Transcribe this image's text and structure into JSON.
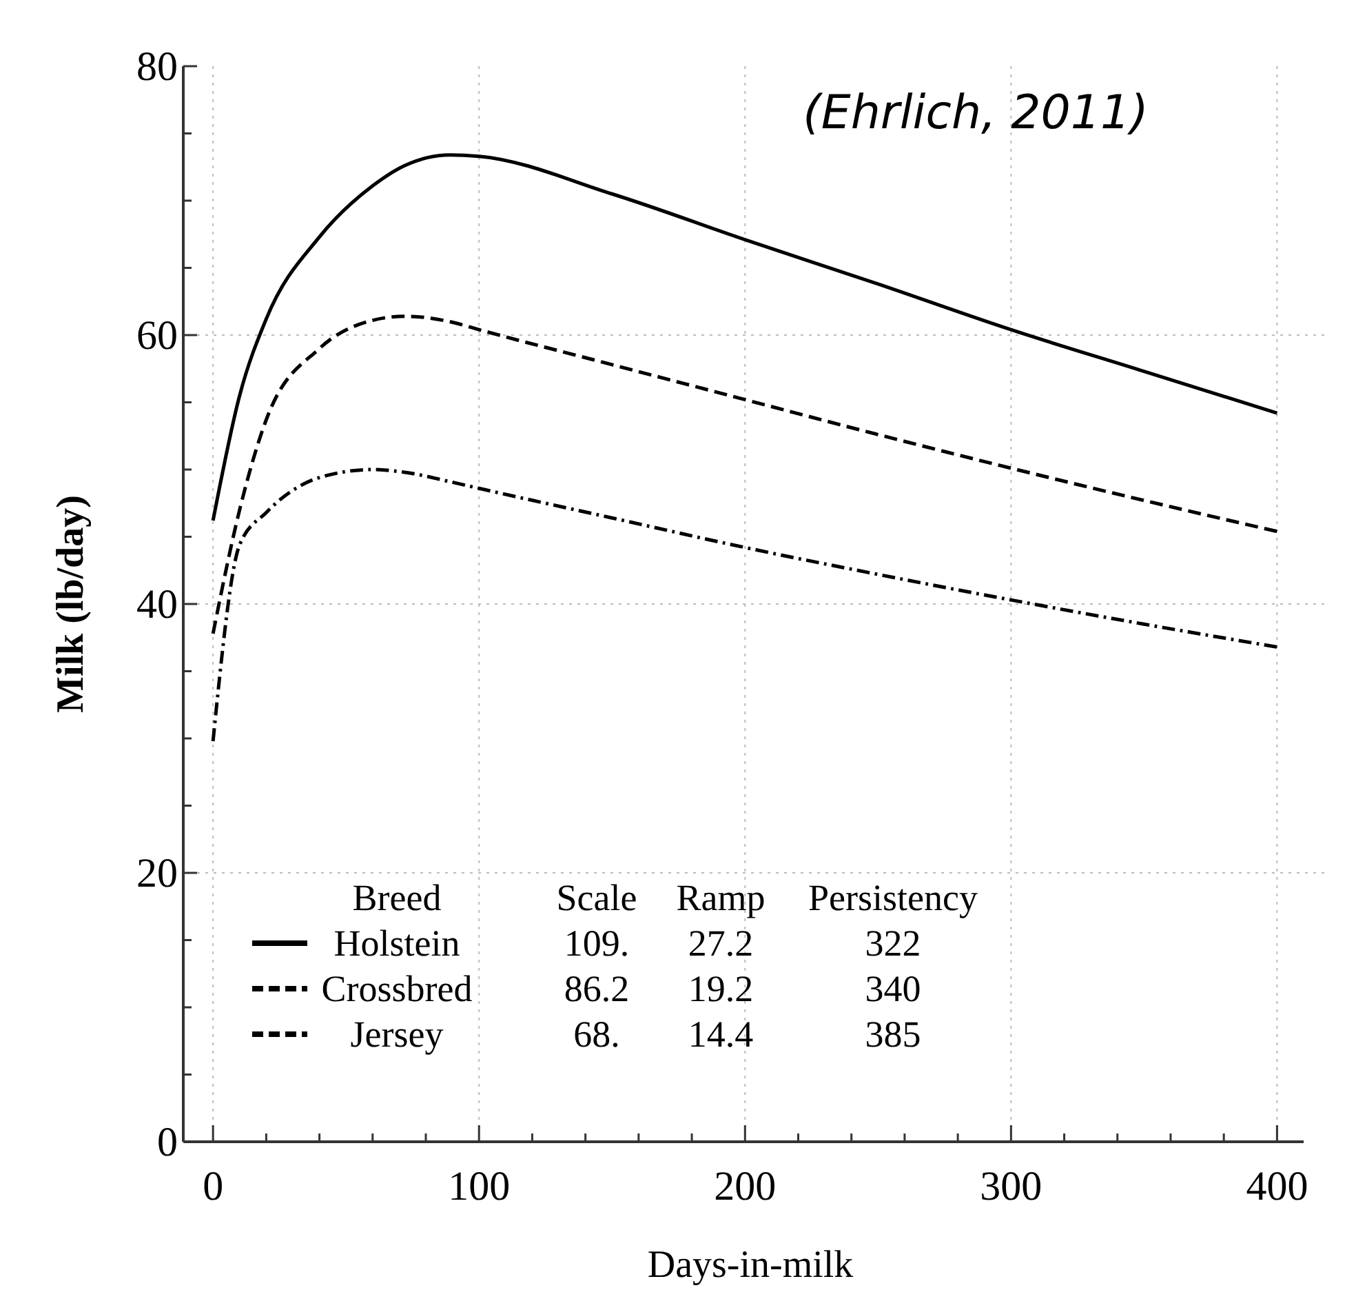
{
  "chart_data": {
    "type": "line",
    "xlabel": "Days-in-milk",
    "ylabel": "Milk (lb/day)",
    "legend_title": "Breed",
    "legend": "bottom left",
    "grid": true,
    "xlim": [
      -6,
      410
    ],
    "ylim": [
      0,
      80
    ],
    "xticks": [
      0,
      {
        "value": 20,
        "label": null
      },
      {
        "value": 40,
        "label": null
      },
      {
        "value": 60,
        "label": null
      },
      {
        "value": 80,
        "label": null
      },
      100,
      {
        "value": 120,
        "label": null
      },
      {
        "value": 140,
        "label": null
      },
      {
        "value": 160,
        "label": null
      },
      {
        "value": 180,
        "label": null
      },
      200,
      {
        "value": 220,
        "label": null
      },
      {
        "value": 240,
        "label": null
      },
      {
        "value": 260,
        "label": null
      },
      {
        "value": 280,
        "label": null
      },
      300,
      {
        "value": 320,
        "label": null
      },
      {
        "value": 340,
        "label": null
      },
      {
        "value": 360,
        "label": null
      },
      {
        "value": 380,
        "label": null
      },
      400
    ],
    "yticks": [
      0,
      {
        "value": 5,
        "label": null
      },
      {
        "value": 10,
        "label": null
      },
      {
        "value": 15,
        "label": null
      },
      20,
      {
        "value": 25,
        "label": null
      },
      {
        "value": 30,
        "label": null
      },
      {
        "value": 35,
        "label": null
      },
      40,
      {
        "value": 45,
        "label": null
      },
      {
        "value": 50,
        "label": null
      },
      {
        "value": 55,
        "label": null
      },
      60,
      {
        "value": 65,
        "label": null
      },
      {
        "value": 70,
        "label": null
      },
      {
        "value": 75,
        "label": null
      },
      80
    ],
    "x": [
      0,
      10,
      20,
      40,
      60,
      72,
      89,
      100,
      150,
      200,
      250,
      300,
      350,
      400
    ],
    "series": [
      {
        "name": "Holstein",
        "color": "#000000",
        "line_style": "solid",
        "values": [
          46.2,
          55.5,
          61.2,
          67.3,
          71.1,
          72.6,
          73.4,
          73.3,
          70.5,
          67.1,
          63.8,
          60.4,
          57.3,
          54.2
        ]
      },
      {
        "name": "Crossbred",
        "color": "#000000",
        "line_style": "dashed",
        "values": [
          37.8,
          47,
          53.7,
          59,
          61.1,
          61.4,
          61.0,
          60.4,
          57.8,
          55.2,
          52.6,
          50.1,
          47.7,
          45.4
        ]
      },
      {
        "name": "Jersey",
        "color": "#000000",
        "line_style": "dashdot",
        "values": [
          29.8,
          44.4,
          46.8,
          49.4,
          50.0,
          49.8,
          49.1,
          48.6,
          46.4,
          44.2,
          42.2,
          40.3,
          38.5,
          36.8
        ]
      }
    ],
    "annotations": [
      "(Ehrlich, 2011)",
      "Scale",
      "Ramp",
      "Persistency",
      "109.",
      "27.2",
      "322",
      "86.2",
      "19.2",
      "340",
      "68.",
      "14.4",
      "385"
    ]
  }
}
